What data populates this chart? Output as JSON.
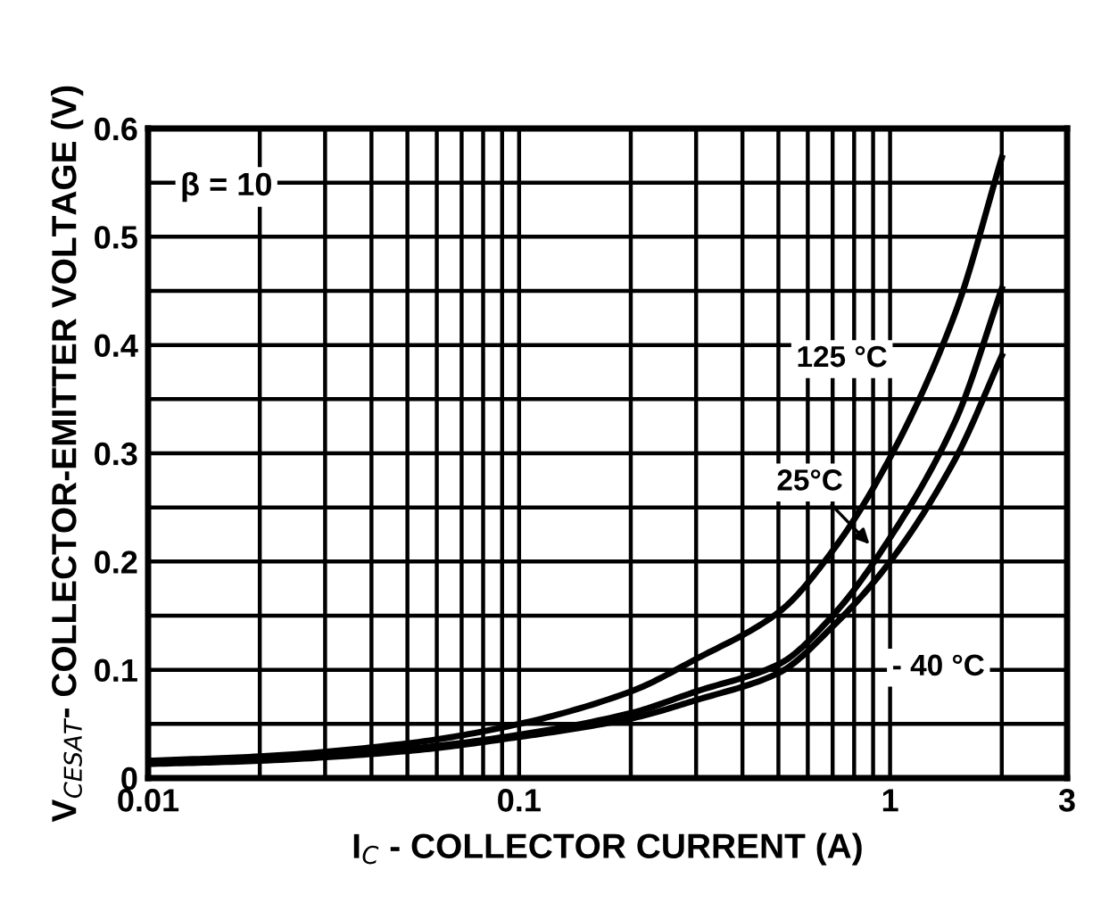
{
  "chart_data": {
    "type": "line",
    "xlabel": "I$_{C}$ - COLLECTOR CURRENT (A)",
    "ylabel": "V$_{CESAT}$- COLLECTOR-EMITTER VOLTAGE (V)",
    "x": [
      0.01,
      0.02,
      0.05,
      0.1,
      0.2,
      0.3,
      0.5,
      0.7,
      1,
      1.5,
      2
    ],
    "series": [
      {
        "color": "#000000",
        "values": [
          0.016,
          0.02,
          0.032,
          0.05,
          0.08,
          0.11,
          0.153,
          0.21,
          0.296,
          0.43,
          0.573
        ]
      },
      {
        "color": "#000000",
        "values": [
          0.015,
          0.018,
          0.027,
          0.04,
          0.06,
          0.08,
          0.105,
          0.15,
          0.222,
          0.33,
          0.452
        ]
      },
      {
        "color": "#000000",
        "values": [
          0.013,
          0.016,
          0.025,
          0.038,
          0.055,
          0.072,
          0.097,
          0.14,
          0.2,
          0.295,
          0.39
        ]
      }
    ],
    "log": "x",
    "xlim": [
      0.01,
      3
    ],
    "ylim": [
      0,
      0.6
    ],
    "xticks": [
      0.01,
      {
        "value": 0.02,
        "label": null
      },
      {
        "value": 0.03,
        "label": null
      },
      {
        "value": 0.04,
        "label": null
      },
      {
        "value": 0.05,
        "label": null
      },
      {
        "value": 0.06,
        "label": null
      },
      {
        "value": 0.07,
        "label": null
      },
      {
        "value": 0.08,
        "label": null
      },
      {
        "value": 0.09,
        "label": null
      },
      0.1,
      {
        "value": 0.2,
        "label": null
      },
      {
        "value": 0.3,
        "label": null
      },
      {
        "value": 0.4,
        "label": null
      },
      {
        "value": 0.5,
        "label": null
      },
      {
        "value": 0.6,
        "label": null
      },
      {
        "value": 0.7,
        "label": null
      },
      {
        "value": 0.8,
        "label": null
      },
      {
        "value": 0.9,
        "label": null
      },
      1,
      {
        "value": 2,
        "label": null
      },
      3
    ],
    "yticks": [
      0,
      {
        "value": 0.05,
        "label": null
      },
      0.1,
      {
        "value": 0.15,
        "label": null
      },
      0.2,
      {
        "value": 0.25,
        "label": null
      },
      0.3,
      {
        "value": 0.35,
        "label": null
      },
      0.4,
      {
        "value": 0.45,
        "label": null
      },
      0.5,
      {
        "value": 0.55,
        "label": null
      },
      0.6
    ],
    "grid": true,
    "line_style": "solid",
    "marker": "none",
    "annotations": [
      "β = 10",
      "125 °C",
      "25°C",
      "- 40 °C"
    ]
  }
}
